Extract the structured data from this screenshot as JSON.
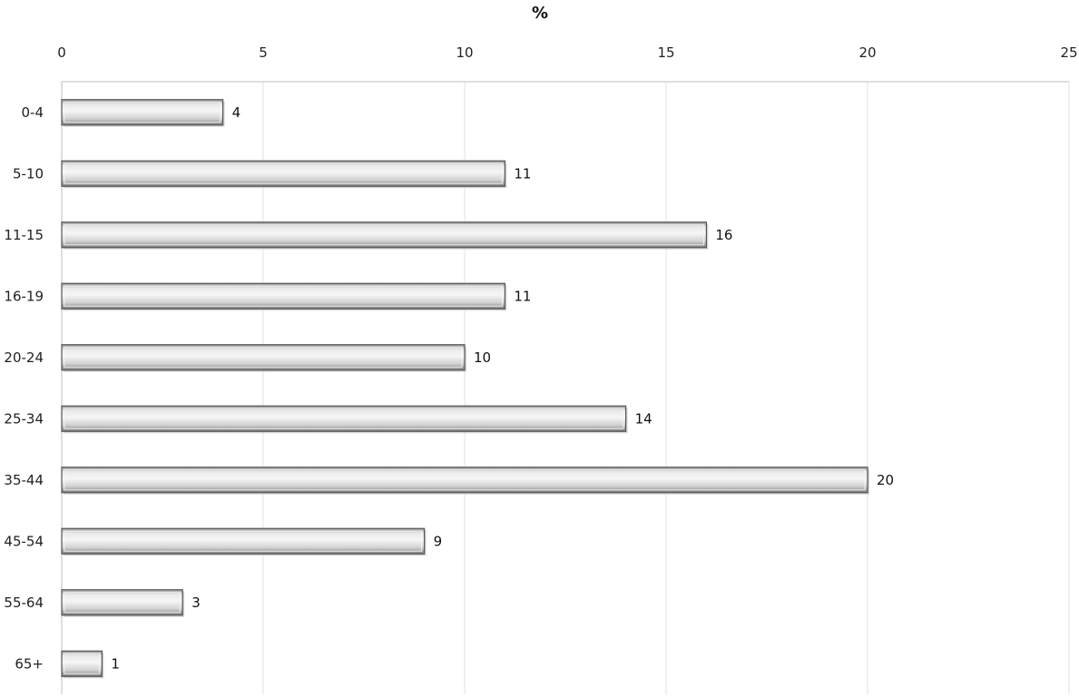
{
  "chart_data": {
    "type": "bar",
    "orientation": "horizontal",
    "title": "",
    "xlabel": "%",
    "xlabel_position": "top",
    "ylabel": "",
    "categories": [
      "0-4",
      "5-10",
      "11-15",
      "16-19",
      "20-24",
      "25-34",
      "35-44",
      "45-54",
      "55-64",
      "65+"
    ],
    "values": [
      4,
      11,
      16,
      11,
      10,
      14,
      20,
      9,
      3,
      1
    ],
    "xlim": [
      0,
      25
    ],
    "x_ticks": [
      0,
      5,
      10,
      15,
      20,
      25
    ],
    "x_tick_labels": [
      "0",
      "5",
      "10",
      "15",
      "20",
      "25"
    ],
    "grid": true,
    "legend": "none",
    "data_labels": [
      "4",
      "11",
      "16",
      "11",
      "10",
      "14",
      "20",
      "9",
      "3",
      "1"
    ],
    "colors": {
      "bar_fill": "#d6d6d6",
      "bar_highlight": "#f4f4f4",
      "bar_edge": "#555555",
      "grid": "#e3e3e3",
      "axis": "#bdbdbd"
    }
  }
}
